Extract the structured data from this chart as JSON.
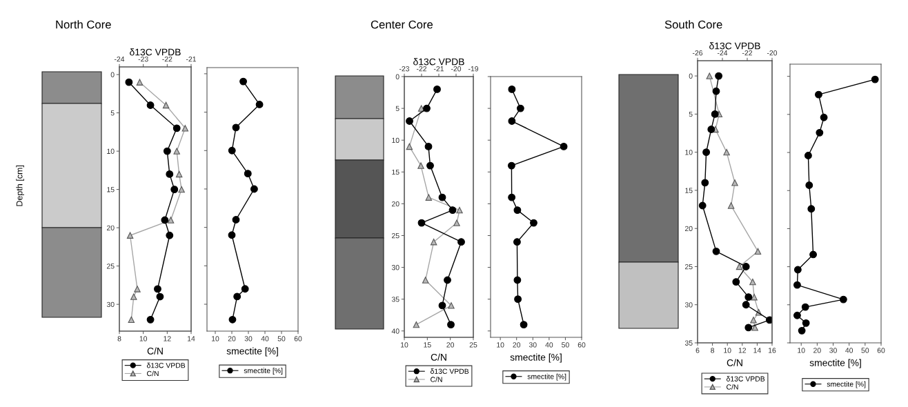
{
  "chart_data": [
    {
      "type": "line",
      "orientation": "horizontal",
      "title": "North Core",
      "ylabel": "Depth [cm]",
      "xlabel": "C/N",
      "x2label": "δ13C VPDB",
      "ylim": [
        33.5,
        -1
      ],
      "yticks": [
        0,
        5,
        10,
        15,
        20,
        25,
        30
      ],
      "xlim": [
        8,
        14
      ],
      "xticks": [
        8,
        10,
        12,
        14
      ],
      "x2lim": [
        -24,
        -21
      ],
      "x2ticks": [
        -24,
        -23,
        -22,
        -21
      ],
      "legend": "bottom",
      "series": [
        {
          "name": "δ13C VPDB",
          "axis": "x2",
          "color": "#000000",
          "marker": "circle",
          "x": [
            1,
            4,
            7,
            10,
            13,
            15,
            19,
            21,
            28,
            29,
            32
          ],
          "values": [
            -23.6,
            -22.7,
            -21.6,
            -22.0,
            -21.9,
            -21.7,
            -22.1,
            -21.9,
            -22.4,
            -22.3,
            -22.7
          ]
        },
        {
          "name": "C/N",
          "color": "#a6a6a6",
          "marker": "triangle",
          "x": [
            1,
            4,
            7,
            10,
            13,
            15,
            19,
            21,
            28,
            29,
            32
          ],
          "values": [
            9.7,
            11.9,
            13.5,
            12.8,
            13.0,
            13.2,
            12.3,
            8.9,
            9.5,
            9.2,
            9.0
          ]
        }
      ]
    },
    {
      "type": "line",
      "orientation": "horizontal",
      "xlabel": "smectite [%]",
      "ylim": [
        33.5,
        -0.8
      ],
      "yticks": [
        0,
        5,
        10,
        15,
        20,
        25,
        30
      ],
      "tick_labels": "x",
      "xlim": [
        5,
        60
      ],
      "xticks": [
        10,
        20,
        30,
        40,
        50,
        60
      ],
      "legend": "bottom",
      "series": [
        {
          "name": "smectite [%]",
          "color": "#000000",
          "marker": "circle",
          "x": [
            1,
            4,
            7,
            10,
            13,
            15,
            19,
            21,
            28,
            29,
            32
          ],
          "values": [
            26.9,
            36.7,
            22.5,
            20.1,
            29.7,
            33.5,
            22.5,
            20.0,
            28.0,
            23.2,
            20.4
          ]
        }
      ]
    },
    {
      "type": "line",
      "orientation": "horizontal",
      "title": "Center Core",
      "xlabel": "C/N",
      "x2label": "δ13C VPDB",
      "ylim": [
        41,
        0
      ],
      "yticks": [
        0,
        5,
        10,
        15,
        20,
        25,
        30,
        35,
        40
      ],
      "xlim": [
        10,
        25
      ],
      "xticks": [
        10,
        15,
        20,
        25
      ],
      "x2lim": [
        -23,
        -19
      ],
      "x2ticks": [
        -23,
        -22,
        -21,
        -20,
        -19
      ],
      "legend": "bottom",
      "series": [
        {
          "name": "δ13C VPDB",
          "axis": "x2",
          "color": "#000000",
          "marker": "circle",
          "x": [
            2,
            5,
            7,
            11,
            14,
            19,
            21,
            23,
            26,
            32,
            36,
            39
          ],
          "values": [
            -21.1,
            -21.7,
            -22.7,
            -21.6,
            -21.5,
            -20.8,
            -20.2,
            -22.0,
            -19.7,
            -20.5,
            -20.8,
            -20.3
          ]
        },
        {
          "name": "C/N",
          "color": "#a6a6a6",
          "marker": "triangle",
          "x": [
            5,
            11,
            14,
            19,
            21,
            23,
            26,
            32,
            36,
            39
          ],
          "values": [
            13.7,
            11.1,
            13.6,
            15.3,
            22.0,
            21.4,
            16.4,
            14.6,
            20.2,
            12.6
          ]
        }
      ]
    },
    {
      "type": "line",
      "orientation": "horizontal",
      "xlabel": "smectite [%]",
      "ylim": [
        41,
        0
      ],
      "yticks": [
        0,
        5,
        10,
        15,
        20,
        25,
        30,
        35,
        40
      ],
      "tick_labels": "x",
      "xlim": [
        4,
        60
      ],
      "xticks": [
        10,
        20,
        30,
        40,
        50,
        60
      ],
      "legend": "bottom",
      "series": [
        {
          "name": "smectite [%]",
          "color": "#000000",
          "marker": "circle",
          "x": [
            2,
            5,
            7,
            11,
            14,
            19,
            21,
            23,
            26,
            32,
            35,
            39
          ],
          "values": [
            17.1,
            22.4,
            17.1,
            49,
            16.9,
            17.0,
            20.5,
            30.5,
            20.3,
            20.5,
            20.8,
            24.4
          ]
        }
      ]
    },
    {
      "type": "line",
      "orientation": "horizontal",
      "title": "South Core",
      "xlabel": "C/N",
      "x2label": "δ13C VPDB",
      "ylim": [
        35,
        -2
      ],
      "yticks": [
        0,
        5,
        10,
        15,
        20,
        25,
        30,
        35
      ],
      "xlim": [
        6,
        16
      ],
      "xticks": [
        6,
        8,
        10,
        12,
        14,
        16
      ],
      "x2lim": [
        -26,
        -20
      ],
      "x2ticks": [
        -26,
        -24,
        -22,
        -20
      ],
      "legend": "bottom",
      "series": [
        {
          "name": "δ13C VPDB",
          "axis": "x2",
          "color": "#000000",
          "marker": "circle",
          "x": [
            0,
            2,
            5,
            7,
            10,
            14,
            17,
            23,
            25,
            27,
            29,
            30,
            32,
            33
          ],
          "values": [
            -24.3,
            -24.5,
            -24.6,
            -24.9,
            -25.3,
            -25.4,
            -25.6,
            -24.5,
            -22.1,
            -22.9,
            -21.9,
            -22.1,
            -20.2,
            -21.9
          ]
        },
        {
          "name": "C/N",
          "color": "#a6a6a6",
          "marker": "triangle",
          "x": [
            0,
            5,
            7,
            10,
            14,
            17,
            23,
            25,
            27,
            29,
            31,
            32,
            33
          ],
          "values": [
            7.6,
            8.9,
            8.4,
            9.9,
            11.0,
            10.5,
            14.1,
            11.6,
            13.4,
            13.6,
            14.2,
            13.5,
            13.7
          ]
        }
      ]
    },
    {
      "type": "line",
      "orientation": "horizontal",
      "xlabel": "smectite [%]",
      "ylim": [
        35,
        -1.6
      ],
      "yticks": [
        0,
        5,
        10,
        15,
        20,
        25,
        30,
        35
      ],
      "tick_labels": "x",
      "xlim": [
        3,
        60
      ],
      "xticks": [
        10,
        20,
        30,
        40,
        50,
        60
      ],
      "legend": "bottom",
      "series": [
        {
          "name": "smectite [%]",
          "color": "#000000",
          "marker": "circle",
          "x": [
            0.4,
            2.4,
            5.4,
            7.4,
            10.4,
            14.3,
            17.4,
            23.4,
            25.4,
            27.4,
            29.3,
            30.3,
            31.4,
            32.4,
            33.4
          ],
          "values": [
            56.2,
            20.9,
            24.2,
            21.5,
            14.4,
            15.0,
            16.3,
            17.5,
            7.9,
            7.5,
            36.4,
            12.6,
            7.5,
            13.0,
            10.4
          ]
        }
      ]
    }
  ]
}
